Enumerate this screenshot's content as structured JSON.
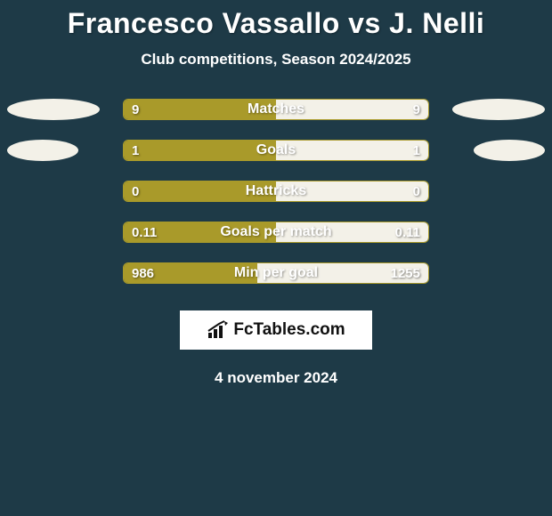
{
  "title": "Francesco Vassallo vs J. Nelli",
  "subtitle": "Club competitions, Season 2024/2025",
  "date": "4 november 2024",
  "logo_text": "FcTables.com",
  "colors": {
    "background": "#1e3a47",
    "left_fill": "#a99a2a",
    "right_fill": "#f3f1e8",
    "bar_border": "#a99a2a"
  },
  "rows": [
    {
      "label": "Matches",
      "left_value": "9",
      "right_value": "9",
      "left_pct": 50,
      "right_pct": 50,
      "ellipse_left_width": 104,
      "ellipse_right_width": 104,
      "show_ellipses": true
    },
    {
      "label": "Goals",
      "left_value": "1",
      "right_value": "1",
      "left_pct": 50,
      "right_pct": 50,
      "ellipse_left_width": 80,
      "ellipse_right_width": 80,
      "show_ellipses": true
    },
    {
      "label": "Hattricks",
      "left_value": "0",
      "right_value": "0",
      "left_pct": 50,
      "right_pct": 50,
      "show_ellipses": false
    },
    {
      "label": "Goals per match",
      "left_value": "0.11",
      "right_value": "0.11",
      "left_pct": 50,
      "right_pct": 50,
      "show_ellipses": false
    },
    {
      "label": "Min per goal",
      "left_value": "986",
      "right_value": "1255",
      "left_pct": 44,
      "right_pct": 56,
      "show_ellipses": false
    }
  ]
}
